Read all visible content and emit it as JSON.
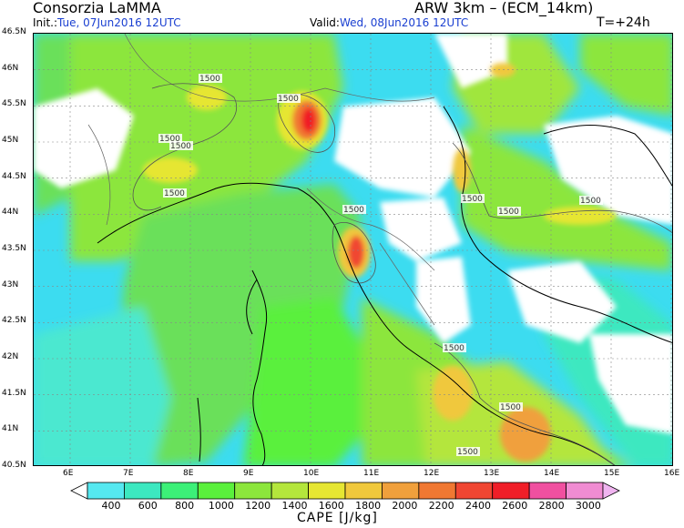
{
  "header": {
    "org": "Consorzia LaMMA",
    "model": "ARW 3km  –  (ECM_14km)",
    "init_label": "Init.:",
    "init_value": "Tue, 07Jun2016  12UTC",
    "valid_label": "Valid:",
    "valid_value": "Wed, 08Jun2016  12UTC",
    "lead": "T=+24h"
  },
  "axes": {
    "lat_ticks": [
      "46.5N",
      "46N",
      "45.5N",
      "45N",
      "44.5N",
      "44N",
      "43.5N",
      "43N",
      "42.5N",
      "42N",
      "41.5N",
      "41N",
      "40.5N"
    ],
    "lon_ticks": [
      "6E",
      "7E",
      "8E",
      "9E",
      "10E",
      "11E",
      "12E",
      "13E",
      "14E",
      "15E",
      "16E"
    ]
  },
  "contour_labels": [
    "1500",
    "1500",
    "1500",
    "1500",
    "1500",
    "1500",
    "1500",
    "1500",
    "1500",
    "1500",
    "1500",
    "1500"
  ],
  "colorbar": {
    "title": "CAPE [J/kg]",
    "levels": [
      "400",
      "600",
      "800",
      "1000",
      "1200",
      "1400",
      "1600",
      "1800",
      "2000",
      "2200",
      "2400",
      "2600",
      "2800",
      "3000"
    ],
    "colors": [
      "#ffffff",
      "#55e8f0",
      "#3ce8c0",
      "#3cf078",
      "#5af03c",
      "#8ce63c",
      "#b4e63c",
      "#e6e632",
      "#f0c83c",
      "#f0a03c",
      "#f07832",
      "#f04632",
      "#f01e28",
      "#f050a0",
      "#f08cd2",
      "#f0b4f0"
    ]
  },
  "colors": {
    "sea": "#3cdcf0",
    "land_low": "#ffffff",
    "accent_blue": "#1a3fd1"
  }
}
